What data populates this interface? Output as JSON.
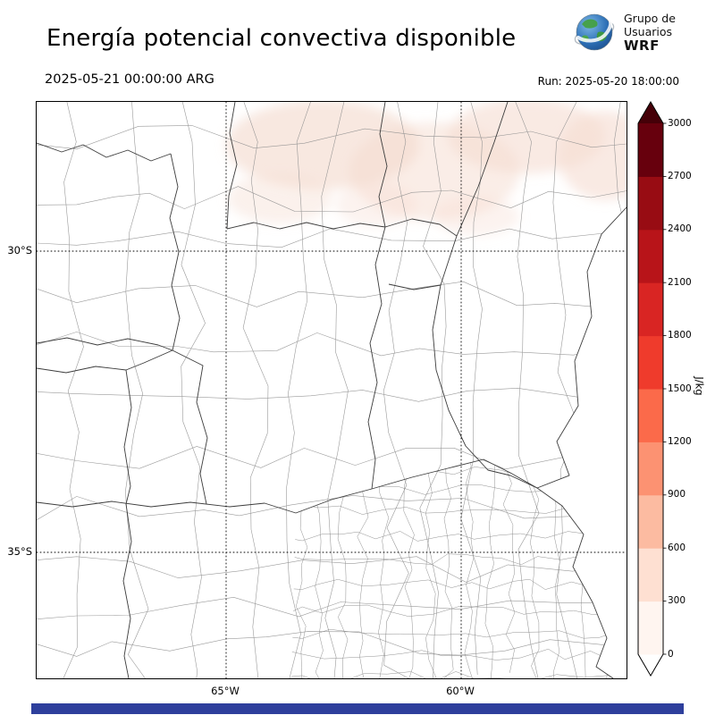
{
  "header": {
    "title": "Energía potencial convectiva disponible",
    "logo": {
      "line1": "Grupo de",
      "line2": "Usuarios",
      "line3": "WRF"
    }
  },
  "times": {
    "valid": "2025-05-21 00:00:00 ARG",
    "run": "Run: 2025-05-20 18:00:00"
  },
  "map": {
    "lat_labels": [
      "30°S",
      "35°S"
    ],
    "lon_labels": [
      "65°W",
      "60°W"
    ],
    "shading_color": "#f5dcd0"
  },
  "colorbar": {
    "unit": "J/kg",
    "ticks": [
      "0",
      "300",
      "600",
      "900",
      "1200",
      "1500",
      "1800",
      "2100",
      "2400",
      "2700",
      "3000"
    ],
    "segment_colors": [
      "#fff5f0",
      "#fee0d2",
      "#fcbba1",
      "#fc9272",
      "#fb6a4a",
      "#ef3b2c",
      "#d92523",
      "#b81419",
      "#980c13",
      "#67000d"
    ],
    "extend_over_color": "#450008",
    "extend_under_color": "#ffffff"
  },
  "footer": {
    "bar_color": "#2e3f9c"
  },
  "chart_data": {
    "type": "heatmap",
    "title": "Energía potencial convectiva disponible",
    "valid_time": "2025-05-21 00:00:00 ARG",
    "run_time": "2025-05-20 18:00:00",
    "unit": "J/kg",
    "colorbar": {
      "min": 0,
      "max": 3000,
      "step": 300,
      "ticks": [
        0,
        300,
        600,
        900,
        1200,
        1500,
        1800,
        2100,
        2400,
        2700,
        3000
      ]
    },
    "x_ticks": [
      "65°W",
      "60°W"
    ],
    "y_ticks": [
      "30°S",
      "35°S"
    ],
    "field_summary": "CAPE near 0 J/kg over most of the domain; scattered weak values (~0–300 J/kg) north of 30°S"
  }
}
